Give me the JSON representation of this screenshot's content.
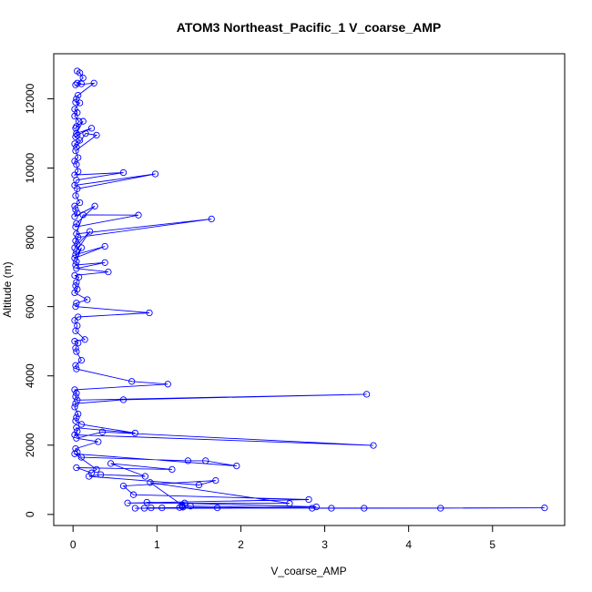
{
  "chart_data": {
    "type": "scatter",
    "title": "ATOM3 Northeast_Pacific_1 V_coarse_AMP",
    "xlabel": "V_coarse_AMP",
    "ylabel": "Altitude (m)",
    "xlim": [
      -0.23,
      5.86
    ],
    "ylim": [
      -320,
      13300
    ],
    "xticks": [
      0,
      1,
      2,
      3,
      4,
      5
    ],
    "yticks": [
      0,
      2000,
      4000,
      6000,
      8000,
      10000,
      12000
    ],
    "grid": false,
    "legend": "none",
    "series_color": "#0000ff",
    "series": [
      {
        "x": [
          0.05,
          0.08,
          0.12,
          0.05,
          0.1,
          0.03,
          0.25,
          0.06,
          0.04,
          0.03,
          0.08,
          0.02,
          0.05,
          0.02,
          0.07,
          0.04,
          0.03,
          0.12,
          0.04,
          0.22,
          0.05,
          0.03,
          0.08,
          0.02,
          0.04,
          0.15,
          0.28,
          0.03,
          0.06,
          0.02,
          0.04,
          0.06,
          0.02,
          0.6,
          0.04,
          0.02,
          0.98,
          0.05,
          0.03,
          0.08,
          0.02,
          0.03,
          0.05,
          0.02,
          0.26,
          0.04,
          0.03,
          0.78,
          0.12,
          0.04,
          1.65,
          0.06,
          0.03,
          0.05,
          0.02,
          0.2,
          0.04,
          0.03,
          0.38,
          0.02,
          0.1,
          0.04,
          0.03,
          0.38,
          0.04,
          0.42,
          0.02,
          0.07,
          0.04,
          0.03,
          0.05,
          0.02,
          0.17,
          0.04,
          0.03,
          0.91,
          0.06,
          0.02,
          0.05,
          0.03,
          0.14,
          0.02,
          0.06,
          0.03,
          0.04,
          0.1,
          0.03,
          0.04,
          0.7,
          1.13,
          0.02,
          0.04,
          0.03,
          0.05,
          3.5,
          0.6,
          0.03,
          0.02,
          0.06,
          0.04,
          0.03,
          0.1,
          0.74,
          0.04,
          0.05,
          0.02,
          3.58,
          0.35,
          0.04,
          0.3,
          0.03,
          0.05,
          0.1,
          1.37,
          1.58,
          1.95,
          0.02,
          0.28,
          0.22,
          0.04,
          1.18,
          0.45,
          0.86,
          0.33,
          0.19,
          1.5,
          1.7,
          0.6,
          0.72,
          2.81,
          0.65,
          2.58,
          0.92,
          1.3,
          1.4,
          2.85,
          3.08,
          3.47,
          4.38,
          5.62,
          0.74,
          0.85,
          0.93,
          1.06,
          1.27,
          1.31,
          1.72,
          2.9,
          0.88,
          1.33,
          1.3
        ],
        "y": [
          12800,
          12750,
          12600,
          12450,
          12430,
          12400,
          12450,
          12100,
          12000,
          11900,
          11880,
          11700,
          11600,
          11500,
          11350,
          11200,
          11150,
          11350,
          11000,
          11150,
          10950,
          10900,
          10800,
          10700,
          10600,
          11000,
          10950,
          10500,
          10300,
          10200,
          10100,
          9900,
          9800,
          9870,
          9650,
          9500,
          9830,
          9400,
          9200,
          9000,
          8900,
          8800,
          8700,
          8600,
          8900,
          8400,
          8300,
          8640,
          8650,
          8100,
          8530,
          8000,
          7900,
          7800,
          7700,
          8170,
          7600,
          7500,
          7740,
          7400,
          7700,
          7300,
          7200,
          7270,
          7100,
          7000,
          6900,
          6850,
          6700,
          6600,
          6500,
          6400,
          6200,
          6100,
          6000,
          5820,
          5700,
          5600,
          5450,
          5300,
          5050,
          5000,
          4950,
          4800,
          4700,
          4450,
          4300,
          4200,
          3840,
          3760,
          3600,
          3500,
          3400,
          3300,
          3470,
          3310,
          3200,
          3100,
          2900,
          2800,
          2700,
          2600,
          2350,
          2500,
          2400,
          2300,
          1990,
          2380,
          2200,
          2100,
          1900,
          1800,
          1650,
          1550,
          1550,
          1400,
          1750,
          1300,
          1200,
          1350,
          1300,
          1470,
          1100,
          1150,
          1100,
          850,
          980,
          820,
          570,
          430,
          330,
          320,
          920,
          270,
          240,
          180,
          180,
          180,
          180,
          190,
          180,
          180,
          190,
          190,
          200,
          210,
          190,
          220,
          350,
          330,
          230
        ]
      }
    ]
  }
}
